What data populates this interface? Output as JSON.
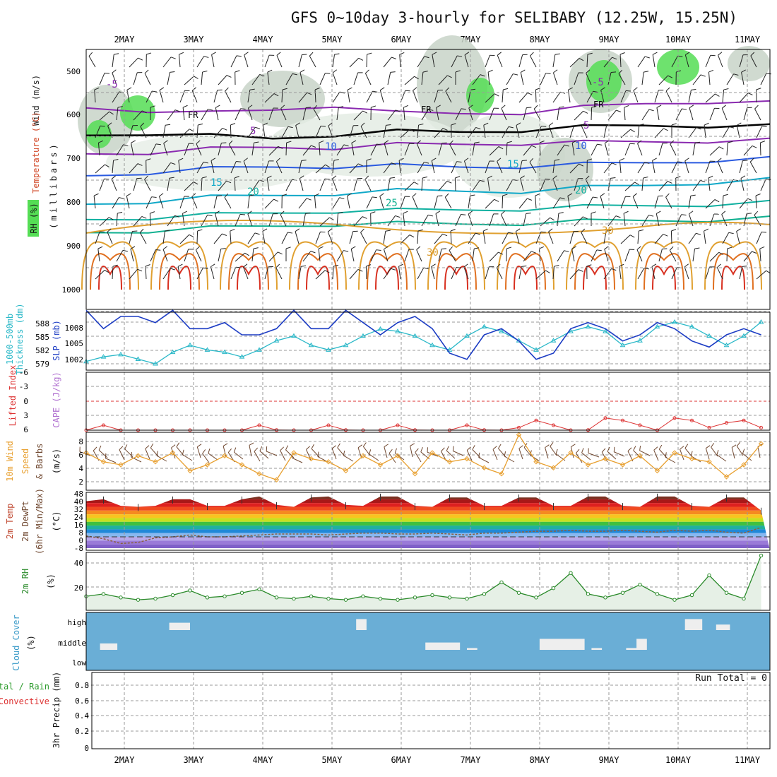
{
  "title": "GFS 0~10day 3-hourly for SELIBABY (12.25W, 15.25N)",
  "dates": [
    "2MAY",
    "3MAY",
    "4MAY",
    "5MAY",
    "6MAY",
    "7MAY",
    "8MAY",
    "9MAY",
    "10MAY",
    "11MAY"
  ],
  "colors": {
    "rh_green": "#55dd55",
    "rh_gray": "#c8d4c8",
    "slp": "#1c3cc4",
    "thickness": "#2ab8c8",
    "lifted": "#dd3333",
    "wind": "#e8a030",
    "barb": "#704830",
    "rh2m": "#2a8a2a",
    "cloud_bg": "#6aaed6",
    "cloud_block": "#eeeeee"
  },
  "panel_labels": {
    "upper_wind": "Wind (m/s)",
    "upper_temp": "Temperature (°C)",
    "upper_rh": "RH (%)",
    "upper_pressure": "(millibars)",
    "slp": "SLP (mb)",
    "thickness_1": "1000-500mb",
    "thickness_2": "Thickness (dm)",
    "lifted": "Lifted Index",
    "cape": "CAPE (J/kg)",
    "wind10_1": "10m Wind",
    "wind10_2": "Speed",
    "wind10_3": "& Barbs",
    "wind10_unit": "(m/s)",
    "temp2m_1": "2m Temp",
    "temp2m_2": "2m DewPt",
    "temp2m_3": "(6hr Min/Max)",
    "temp2m_unit": "(°C)",
    "rh2m": "2m RH",
    "rh2m_unit": "(%)",
    "cloud": "Cloud Cover",
    "cloud_unit": "(%)",
    "precip_1": "Total / Rain",
    "precip_2": "Convective",
    "precip_3": "3hr Precip (mm)"
  },
  "run_total": "Run Total = 0",
  "chart_data": [
    {
      "type": "contour",
      "name": "upper_air",
      "y_ticks": [
        "500",
        "600",
        "700",
        "800",
        "900",
        "1000"
      ],
      "ylabel": "(millibars)",
      "contour_labels": [
        "-5",
        "FR",
        "5",
        "10",
        "15",
        "20",
        "25",
        "30",
        "30",
        "FR",
        "-5",
        "5",
        "10",
        "15",
        "20",
        "30"
      ],
      "isotherms": [
        {
          "label": "-5",
          "color": "#8a2ab0",
          "pressure": [
            535,
            540,
            548,
            540,
            528,
            548,
            548,
            545,
            535,
            525,
            520,
            525
          ]
        },
        {
          "label": "FR",
          "color": "#000000",
          "pressure": [
            598,
            592,
            600,
            605,
            595,
            590,
            590,
            585,
            580,
            575,
            575,
            578
          ]
        },
        {
          "label": "5",
          "color": "#8a2ab0",
          "pressure": [
            640,
            636,
            630,
            625,
            625,
            620,
            618,
            615,
            615,
            612,
            610,
            610
          ]
        },
        {
          "label": "10",
          "color": "#2a5ae0",
          "pressure": [
            690,
            682,
            675,
            670,
            668,
            668,
            670,
            668,
            665,
            660,
            655,
            652
          ]
        },
        {
          "label": "15",
          "color": "#10a8c8",
          "pressure": [
            755,
            748,
            740,
            735,
            730,
            725,
            725,
            725,
            718,
            712,
            705,
            700
          ]
        },
        {
          "label": "20",
          "color": "#10b0a0",
          "pressure": [
            790,
            785,
            780,
            775,
            770,
            770,
            768,
            765,
            762,
            758,
            755,
            752
          ]
        },
        {
          "label": "25",
          "color": "#10b090",
          "pressure": [
            820,
            815,
            810,
            805,
            800,
            800,
            800,
            798,
            795,
            792,
            790,
            788
          ]
        }
      ]
    },
    {
      "type": "line",
      "name": "slp_thickness",
      "y_ticks_left": [
        "588",
        "585",
        "582",
        "579"
      ],
      "y_ticks_right": [
        "1008",
        "1005",
        "1002"
      ],
      "x": [
        0,
        0.25,
        0.5,
        0.75,
        1,
        1.25,
        1.5,
        1.75,
        2,
        2.25,
        2.5,
        2.75,
        3,
        3.25,
        3.5,
        3.75,
        4,
        4.25,
        4.5,
        4.75,
        5,
        5.25,
        5.5,
        5.75,
        6,
        6.25,
        6.5,
        6.75,
        7,
        7.25,
        7.5,
        7.75,
        8,
        8.25,
        8.5,
        8.75,
        9,
        9.25,
        9.5,
        9.75
      ],
      "series": [
        {
          "name": "SLP (mb)",
          "axis": "right",
          "values": [
            1009,
            1006,
            1008,
            1008,
            1007,
            1009,
            1006,
            1006,
            1007,
            1005,
            1005,
            1006,
            1009,
            1006,
            1006,
            1009,
            1007,
            1005,
            1007,
            1008,
            1006,
            1002,
            1001,
            1005,
            1006,
            1004,
            1001,
            1002,
            1006,
            1007,
            1006,
            1004,
            1005,
            1007,
            1006,
            1004,
            1003,
            1005,
            1006,
            1005
          ]
        },
        {
          "name": "1000-500mb Thickness (dm)",
          "axis": "left",
          "values": [
            579.5,
            580.5,
            581,
            580,
            579,
            581.5,
            583,
            582,
            581.5,
            580.5,
            582,
            584,
            585,
            583,
            582,
            583,
            585,
            586.5,
            586,
            585,
            583,
            582,
            585,
            587,
            586,
            584,
            582,
            584,
            586,
            587,
            586,
            583,
            584,
            587,
            588,
            587,
            585,
            583,
            585,
            588
          ]
        }
      ]
    },
    {
      "type": "line",
      "name": "lifted_index",
      "ylabel": "Lifted Index",
      "y_ticks": [
        "-6",
        "-3",
        "0",
        "3",
        "6"
      ],
      "ylim": [
        -6,
        6
      ],
      "x": [
        0,
        0.25,
        0.5,
        0.75,
        1,
        1.25,
        1.5,
        1.75,
        2,
        2.25,
        2.5,
        2.75,
        3,
        3.25,
        3.5,
        3.75,
        4,
        4.25,
        4.5,
        4.75,
        5,
        5.25,
        5.5,
        5.75,
        6,
        6.25,
        6.5,
        6.75,
        7,
        7.25,
        7.5,
        7.75,
        8,
        8.25,
        8.5,
        8.75,
        9,
        9.25,
        9.5,
        9.75
      ],
      "series": [
        {
          "name": "Lifted Index",
          "values": [
            6.5,
            5,
            7,
            8,
            8,
            7.5,
            6.5,
            7,
            8,
            6.5,
            5,
            6,
            8,
            7,
            5,
            6,
            8,
            6.5,
            5,
            6,
            8,
            7,
            5,
            6,
            7.5,
            5.5,
            4,
            5,
            7,
            6,
            3.5,
            4,
            5,
            6.5,
            3.5,
            4,
            5.5,
            4.5,
            4,
            5.5
          ]
        }
      ]
    },
    {
      "type": "line",
      "name": "wind10m",
      "ylabel": "10m Wind Speed & Barbs (m/s)",
      "y_ticks": [
        "8",
        "6",
        "4",
        "2"
      ],
      "ylim": [
        0,
        10
      ],
      "x": [
        0,
        0.25,
        0.5,
        0.75,
        1,
        1.25,
        1.5,
        1.75,
        2,
        2.25,
        2.5,
        2.75,
        3,
        3.25,
        3.5,
        3.75,
        4,
        4.25,
        4.5,
        4.75,
        5,
        5.25,
        5.5,
        5.75,
        6,
        6.25,
        6.5,
        6.75,
        7,
        7.25,
        7.5,
        7.75,
        8,
        8.25,
        8.5,
        8.75,
        9,
        9.25,
        9.5,
        9.75
      ],
      "series": [
        {
          "name": "Speed",
          "values": [
            6,
            4.5,
            4,
            5.5,
            4.5,
            6,
            3,
            4,
            5.5,
            4,
            2.5,
            1.5,
            6,
            5,
            4.5,
            3,
            5.5,
            4,
            5.5,
            2.5,
            6,
            4.5,
            5,
            3.5,
            2.5,
            9,
            4.5,
            3.5,
            6,
            4,
            5,
            4,
            5.5,
            3,
            6,
            5,
            4.5,
            2,
            4,
            7.5
          ]
        }
      ]
    },
    {
      "type": "area",
      "name": "temp2m",
      "ylabel": "2m Temp / 2m DewPt (°C)",
      "y_ticks": [
        "48",
        "40",
        "32",
        "24",
        "16",
        "8",
        "0",
        "-8"
      ],
      "ylim": [
        -12,
        48
      ],
      "x": [
        0,
        0.25,
        0.5,
        0.75,
        1,
        1.25,
        1.5,
        1.75,
        2,
        2.25,
        2.5,
        2.75,
        3,
        3.25,
        3.5,
        3.75,
        4,
        4.25,
        4.5,
        4.75,
        5,
        5.25,
        5.5,
        5.75,
        6,
        6.25,
        6.5,
        6.75,
        7,
        7.25,
        7.5,
        7.75,
        8,
        8.25,
        8.5,
        8.75,
        9,
        9.25,
        9.5,
        9.75
      ],
      "series": [
        {
          "name": "2m Temp",
          "values": [
            38,
            40,
            33,
            32,
            33,
            40,
            40,
            33,
            33,
            40,
            43,
            34,
            32,
            42,
            43,
            34,
            33,
            43,
            43,
            33,
            32,
            42,
            42,
            33,
            33,
            42,
            42,
            33,
            33,
            43,
            43,
            33,
            32,
            43,
            43,
            33,
            32,
            42,
            42,
            28
          ]
        },
        {
          "name": "2m DewPt",
          "values": [
            1,
            -2,
            -7,
            -6,
            -1,
            0,
            2,
            0,
            0,
            1,
            2,
            3,
            3,
            3,
            2,
            3,
            4,
            4,
            3,
            3,
            4,
            3,
            2,
            4,
            4,
            5,
            6,
            6,
            7,
            6,
            6,
            7,
            6,
            5,
            7,
            6,
            7,
            5,
            4,
            10
          ]
        }
      ]
    },
    {
      "type": "area",
      "name": "rh2m",
      "ylabel": "2m RH (%)",
      "y_ticks": [
        "40",
        "20"
      ],
      "ylim": [
        0,
        50
      ],
      "x": [
        0,
        0.25,
        0.5,
        0.75,
        1,
        1.25,
        1.5,
        1.75,
        2,
        2.25,
        2.5,
        2.75,
        3,
        3.25,
        3.5,
        3.75,
        4,
        4.25,
        4.5,
        4.75,
        5,
        5.25,
        5.5,
        5.75,
        6,
        6.25,
        6.5,
        6.75,
        7,
        7.25,
        7.5,
        7.75,
        8,
        8.25,
        8.5,
        8.75,
        9,
        9.25,
        9.5,
        9.75
      ],
      "series": [
        {
          "name": "2m RH",
          "values": [
            12,
            14,
            11,
            9,
            10,
            13,
            17,
            11,
            12,
            15,
            18,
            11,
            10,
            12,
            10,
            9,
            12,
            10,
            9,
            11,
            13,
            11,
            10,
            14,
            24,
            15,
            11,
            19,
            32,
            14,
            11,
            15,
            22,
            14,
            9,
            13,
            30,
            15,
            10,
            47
          ]
        }
      ]
    },
    {
      "type": "bar",
      "name": "cloud_cover",
      "ylabel": "Cloud Cover (%)",
      "y_ticks": [
        "high",
        "middle",
        "low"
      ],
      "layers": [
        {
          "name": "high",
          "blocks": [
            {
              "start": 1.2,
              "end": 1.5,
              "value": 40
            },
            {
              "start": 3.9,
              "end": 4.05,
              "value": 60
            },
            {
              "start": 8.65,
              "end": 8.9,
              "value": 60
            },
            {
              "start": 9.1,
              "end": 9.3,
              "value": 30
            }
          ]
        },
        {
          "name": "middle",
          "blocks": [
            {
              "start": 0.2,
              "end": 0.45,
              "value": 35
            },
            {
              "start": 4.9,
              "end": 5.4,
              "value": 40
            },
            {
              "start": 5.5,
              "end": 5.65,
              "value": 10
            },
            {
              "start": 6.55,
              "end": 7.2,
              "value": 60
            },
            {
              "start": 7.3,
              "end": 7.45,
              "value": 10
            },
            {
              "start": 7.8,
              "end": 8.0,
              "value": 10
            },
            {
              "start": 7.95,
              "end": 8.1,
              "value": 60
            }
          ]
        },
        {
          "name": "low",
          "blocks": []
        }
      ]
    },
    {
      "type": "bar",
      "name": "precip",
      "ylabel": "3hr Precip (mm)",
      "y_ticks": [
        "0.8",
        "0.6",
        "0.4",
        "0.2",
        "0"
      ],
      "ylim": [
        0,
        1
      ],
      "series": [
        {
          "name": "Total / Rain",
          "values": [
            0,
            0,
            0,
            0,
            0,
            0,
            0,
            0,
            0,
            0
          ]
        },
        {
          "name": "Convective",
          "values": [
            0,
            0,
            0,
            0,
            0,
            0,
            0,
            0,
            0,
            0
          ]
        }
      ]
    }
  ]
}
